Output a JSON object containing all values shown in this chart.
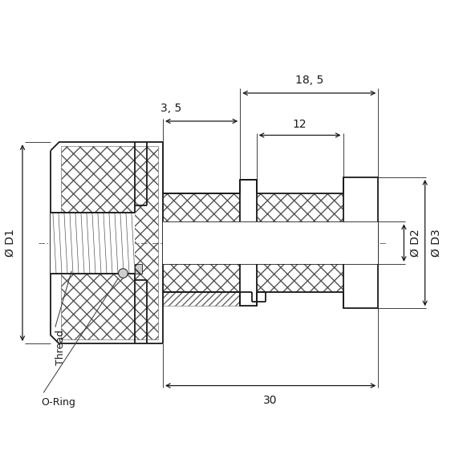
{
  "bg_color": "#ffffff",
  "line_color": "#1a1a1a",
  "lw": 1.3,
  "dlw": 0.9,
  "tlw": 0.6,
  "fs": 10,
  "fs_s": 9,
  "annotations": {
    "dim_18_5": "18, 5",
    "dim_3_5": "3, 5",
    "dim_12": "12",
    "dim_30": "30",
    "label_D1": "Ø D1",
    "label_D2": "Ø D2",
    "label_D3": "Ø D3",
    "label_Thread": "Thread",
    "label_ORing": "O-Ring"
  }
}
